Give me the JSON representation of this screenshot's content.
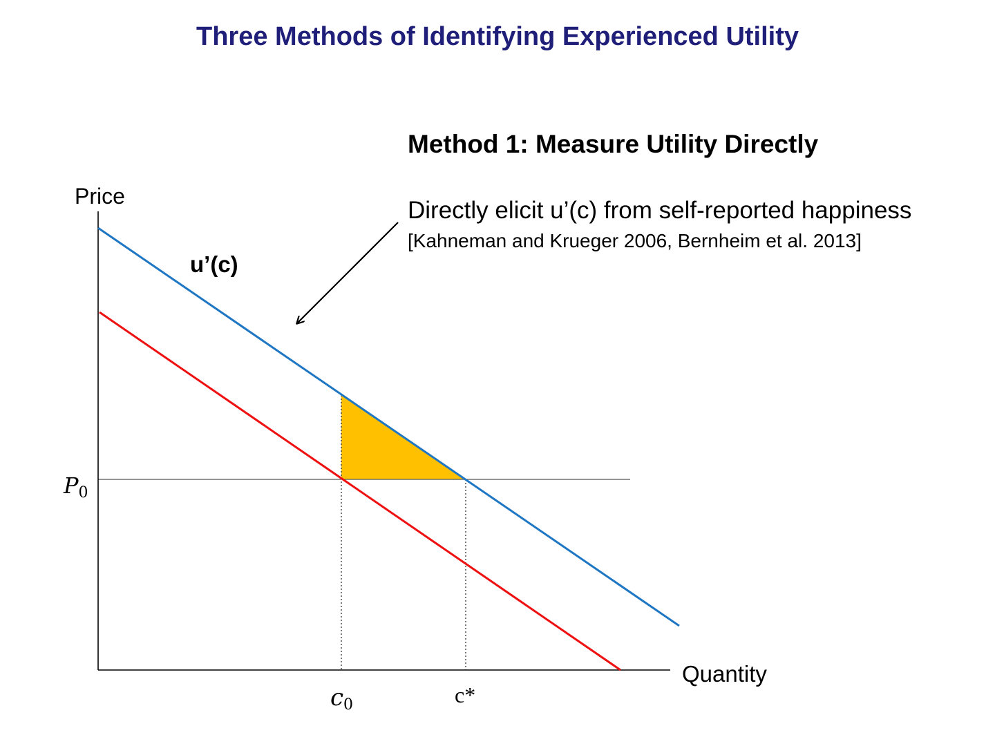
{
  "slide": {
    "title": "Three Methods of Identifying Experienced Utility",
    "title_color": "#1f1f7a"
  },
  "method": {
    "heading": "Method 1: Measure Utility Directly",
    "description": "Directly elicit u’(c) from self-reported happiness",
    "citation": "[Kahneman and Krueger 2006, Bernheim et al. 2013]"
  },
  "diagram": {
    "y_axis_label": "Price",
    "x_axis_label": "Quantity",
    "blue_curve_label": "u’(c)",
    "price_level": {
      "symbol": "P",
      "subscript": "0"
    },
    "quantity_c0": {
      "symbol": "c",
      "subscript": "0"
    },
    "quantity_cstar": "c*",
    "colors": {
      "blue_curve": "#1f77c4",
      "red_curve": "#ee1111",
      "shaded_triangle": "#ffc000",
      "axes": "#000000",
      "reference_lines": "#555555"
    }
  }
}
